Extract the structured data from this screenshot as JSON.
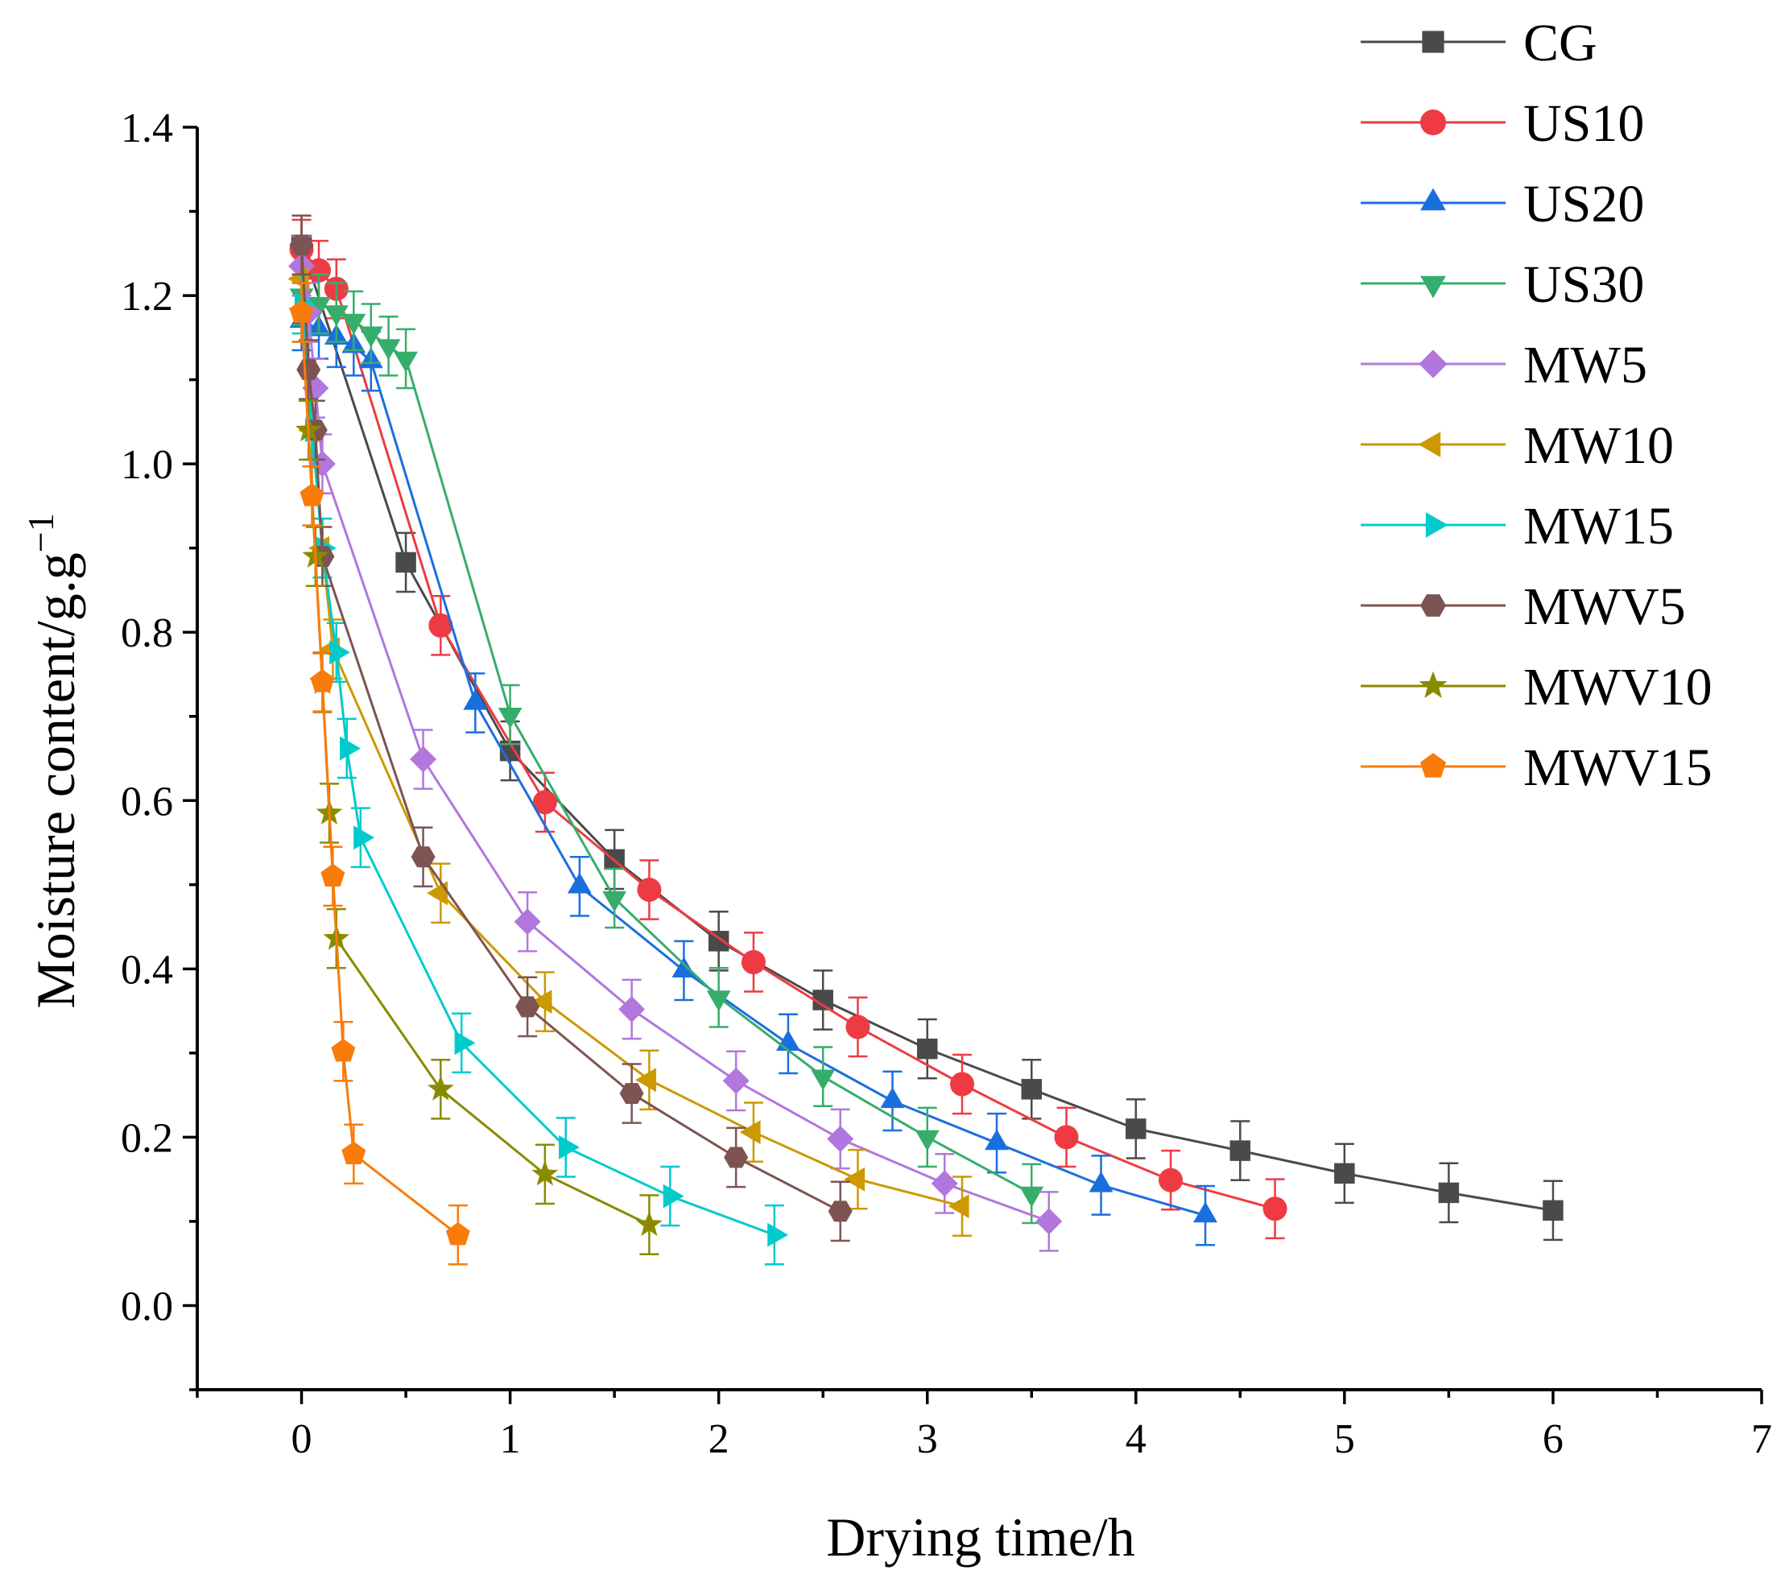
{
  "chart_data": {
    "type": "line",
    "title": "",
    "xlabel": "Drying time/h",
    "ylabel": "Moisture content/g.g",
    "ylabel_superscript": "−1",
    "xlim": [
      -0.5,
      7
    ],
    "ylim": [
      -0.1,
      1.4
    ],
    "xticks": [
      0,
      1,
      2,
      3,
      4,
      5,
      6,
      7
    ],
    "xtick_labels": [
      "0",
      "1",
      "2",
      "3",
      "4",
      "5",
      "6",
      "7"
    ],
    "yticks": [
      0.0,
      0.2,
      0.4,
      0.6,
      0.8,
      1.0,
      1.2,
      1.4
    ],
    "ytick_labels": [
      "0.0",
      "0.2",
      "0.4",
      "0.6",
      "0.8",
      "1.0",
      "1.2",
      "1.4"
    ],
    "grid": false,
    "legend": "top-right, outside plot",
    "error_bars": true,
    "series": [
      {
        "name": "CG",
        "color": "#4a4a4a",
        "marker": "square",
        "x": [
          0,
          0.5,
          1.0,
          1.5,
          2.0,
          2.5,
          3.0,
          3.5,
          4.0,
          4.5,
          5.0,
          5.5,
          6.0
        ],
        "y": [
          1.26,
          0.883,
          0.659,
          0.53,
          0.433,
          0.363,
          0.305,
          0.257,
          0.21,
          0.184,
          0.157,
          0.134,
          0.113
        ],
        "err": [
          0.035,
          0.035,
          0.035,
          0.035,
          0.035,
          0.035,
          0.035,
          0.035,
          0.035,
          0.035,
          0.035,
          0.035,
          0.035
        ]
      },
      {
        "name": "US10",
        "color": "#ee3b43",
        "marker": "circle",
        "x": [
          0,
          0.083,
          0.167,
          0.667,
          1.167,
          1.667,
          2.167,
          2.667,
          3.167,
          3.667,
          4.167,
          4.667
        ],
        "y": [
          1.255,
          1.23,
          1.208,
          0.808,
          0.598,
          0.494,
          0.408,
          0.331,
          0.263,
          0.2,
          0.149,
          0.115
        ],
        "err": [
          0.035,
          0.035,
          0.035,
          0.035,
          0.035,
          0.035,
          0.035,
          0.035,
          0.035,
          0.035,
          0.035,
          0.035
        ]
      },
      {
        "name": "US20",
        "color": "#1a6fdf",
        "marker": "triangle-up",
        "x": [
          0,
          0.083,
          0.167,
          0.25,
          0.333,
          0.833,
          1.333,
          1.833,
          2.333,
          2.833,
          3.333,
          3.833,
          4.333
        ],
        "y": [
          1.17,
          1.16,
          1.15,
          1.14,
          1.122,
          0.716,
          0.498,
          0.398,
          0.311,
          0.243,
          0.193,
          0.143,
          0.107
        ],
        "err": [
          0.035,
          0.035,
          0.035,
          0.035,
          0.035,
          0.035,
          0.035,
          0.035,
          0.035,
          0.035,
          0.035,
          0.035,
          0.035
        ]
      },
      {
        "name": "US30",
        "color": "#37ad6b",
        "marker": "triangle-down",
        "x": [
          0,
          0.083,
          0.167,
          0.25,
          0.333,
          0.417,
          0.5,
          1.0,
          1.5,
          2.0,
          2.5,
          3.0,
          3.5
        ],
        "y": [
          1.2,
          1.19,
          1.18,
          1.17,
          1.155,
          1.14,
          1.125,
          0.702,
          0.484,
          0.366,
          0.272,
          0.2,
          0.133
        ],
        "err": [
          0.035,
          0.035,
          0.035,
          0.035,
          0.035,
          0.035,
          0.035,
          0.035,
          0.035,
          0.035,
          0.035,
          0.035,
          0.035
        ]
      },
      {
        "name": "MW5",
        "color": "#b177de",
        "marker": "diamond",
        "x": [
          0,
          0.0333,
          0.0667,
          0.1,
          0.583,
          1.083,
          1.583,
          2.083,
          2.583,
          3.083,
          3.583
        ],
        "y": [
          1.235,
          1.18,
          1.09,
          1.0,
          0.649,
          0.456,
          0.352,
          0.267,
          0.198,
          0.145,
          0.1
        ],
        "err": [
          0.035,
          0.035,
          0.035,
          0.035,
          0.035,
          0.035,
          0.035,
          0.035,
          0.035,
          0.035,
          0.035
        ]
      },
      {
        "name": "MW10",
        "color": "#cc9900",
        "marker": "triangle-left",
        "x": [
          0,
          0.05,
          0.1,
          0.15,
          0.667,
          1.167,
          1.667,
          2.167,
          2.667,
          3.167
        ],
        "y": [
          1.22,
          1.04,
          0.9,
          0.78,
          0.49,
          0.361,
          0.268,
          0.206,
          0.15,
          0.118
        ],
        "err": [
          0.035,
          0.035,
          0.035,
          0.035,
          0.035,
          0.035,
          0.035,
          0.035,
          0.035,
          0.035
        ]
      },
      {
        "name": "MW15",
        "color": "#00cbcc",
        "marker": "triangle-right",
        "x": [
          0,
          0.05,
          0.1,
          0.167,
          0.217,
          0.283,
          0.767,
          1.267,
          1.767,
          2.267
        ],
        "y": [
          1.19,
          1.04,
          0.9,
          0.776,
          0.662,
          0.556,
          0.312,
          0.188,
          0.13,
          0.084
        ],
        "err": [
          0.035,
          0.035,
          0.035,
          0.035,
          0.035,
          0.035,
          0.035,
          0.035,
          0.035,
          0.035
        ]
      },
      {
        "name": "MWV5",
        "color": "#7d5451",
        "marker": "hexagon",
        "x": [
          0,
          0.0333,
          0.0667,
          0.1,
          0.583,
          1.083,
          1.583,
          2.083,
          2.583
        ],
        "y": [
          1.26,
          1.112,
          1.04,
          0.89,
          0.533,
          0.355,
          0.252,
          0.176,
          0.112
        ],
        "err": [
          0.035,
          0.035,
          0.035,
          0.035,
          0.035,
          0.035,
          0.035,
          0.035,
          0.035
        ]
      },
      {
        "name": "MWV10",
        "color": "#8a8a00",
        "marker": "star",
        "x": [
          0,
          0.0333,
          0.0667,
          0.1,
          0.133,
          0.167,
          0.667,
          1.167,
          1.667
        ],
        "y": [
          1.18,
          1.04,
          0.89,
          0.74,
          0.585,
          0.436,
          0.257,
          0.156,
          0.096
        ],
        "err": [
          0.035,
          0.035,
          0.035,
          0.035,
          0.035,
          0.035,
          0.035,
          0.035,
          0.035
        ]
      },
      {
        "name": "MWV15",
        "color": "#f97b0c",
        "marker": "pentagon",
        "x": [
          0,
          0.05,
          0.1,
          0.15,
          0.2,
          0.25,
          0.75
        ],
        "y": [
          1.18,
          0.962,
          0.741,
          0.51,
          0.302,
          0.18,
          0.084
        ],
        "err": [
          0.035,
          0.035,
          0.035,
          0.035,
          0.035,
          0.035,
          0.035
        ]
      }
    ]
  }
}
